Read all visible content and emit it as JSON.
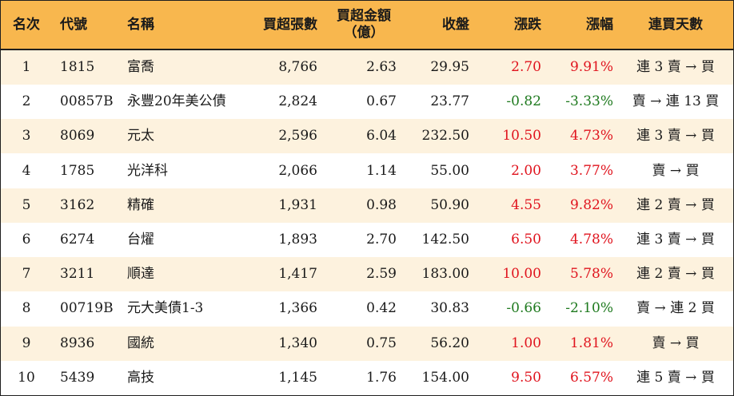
{
  "headers": {
    "rank": "名次",
    "code": "代號",
    "name": "名稱",
    "volume": "買超張數",
    "amount_line1": "買超金額",
    "amount_line2": "（億）",
    "close": "收盤",
    "change": "漲跌",
    "pct": "漲幅",
    "days": "連買天數"
  },
  "colors": {
    "header_bg": "#f8b74e",
    "stripe_bg": "#fdf2de",
    "up": "#e0141e",
    "down": "#1f7a1f"
  },
  "rows": [
    {
      "rank": "1",
      "code": "1815",
      "name": "富喬",
      "volume": "8,766",
      "amount": "2.63",
      "close": "29.95",
      "change": "2.70",
      "pct": "9.91%",
      "days": "連 3 賣 → 買",
      "dir": "up"
    },
    {
      "rank": "2",
      "code": "00857B",
      "name": "永豐20年美公債",
      "volume": "2,824",
      "amount": "0.67",
      "close": "23.77",
      "change": "-0.82",
      "pct": "-3.33%",
      "days": "賣 → 連 13 買",
      "dir": "down"
    },
    {
      "rank": "3",
      "code": "8069",
      "name": "元太",
      "volume": "2,596",
      "amount": "6.04",
      "close": "232.50",
      "change": "10.50",
      "pct": "4.73%",
      "days": "連 3 賣 → 買",
      "dir": "up"
    },
    {
      "rank": "4",
      "code": "1785",
      "name": "光洋科",
      "volume": "2,066",
      "amount": "1.14",
      "close": "55.00",
      "change": "2.00",
      "pct": "3.77%",
      "days": "賣 → 買",
      "dir": "up"
    },
    {
      "rank": "5",
      "code": "3162",
      "name": "精確",
      "volume": "1,931",
      "amount": "0.98",
      "close": "50.90",
      "change": "4.55",
      "pct": "9.82%",
      "days": "連 2 賣 → 買",
      "dir": "up"
    },
    {
      "rank": "6",
      "code": "6274",
      "name": "台燿",
      "volume": "1,893",
      "amount": "2.70",
      "close": "142.50",
      "change": "6.50",
      "pct": "4.78%",
      "days": "連 3 賣 → 買",
      "dir": "up"
    },
    {
      "rank": "7",
      "code": "3211",
      "name": "順達",
      "volume": "1,417",
      "amount": "2.59",
      "close": "183.00",
      "change": "10.00",
      "pct": "5.78%",
      "days": "連 2 賣 → 買",
      "dir": "up"
    },
    {
      "rank": "8",
      "code": "00719B",
      "name": "元大美債1-3",
      "volume": "1,366",
      "amount": "0.42",
      "close": "30.83",
      "change": "-0.66",
      "pct": "-2.10%",
      "days": "賣 → 連 2 買",
      "dir": "down"
    },
    {
      "rank": "9",
      "code": "8936",
      "name": "國統",
      "volume": "1,340",
      "amount": "0.75",
      "close": "56.20",
      "change": "1.00",
      "pct": "1.81%",
      "days": "賣 → 買",
      "dir": "up"
    },
    {
      "rank": "10",
      "code": "5439",
      "name": "高技",
      "volume": "1,145",
      "amount": "1.76",
      "close": "154.00",
      "change": "9.50",
      "pct": "6.57%",
      "days": "連 5 賣 → 買",
      "dir": "up"
    }
  ]
}
